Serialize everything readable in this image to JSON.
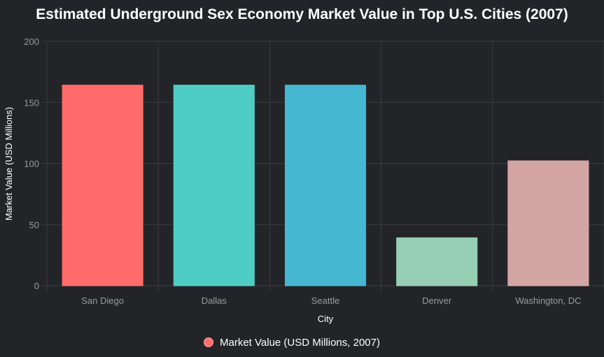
{
  "chart_data": {
    "type": "bar",
    "title": "Estimated Underground Sex Economy Market Value in Top U.S. Cities (2007)",
    "xlabel": "City",
    "ylabel": "Market Value (USD Millions)",
    "categories": [
      "San Diego",
      "Dallas",
      "Seattle",
      "Denver",
      "Washington, DC"
    ],
    "series": [
      {
        "name": "Market Value (USD Millions, 2007)",
        "values": [
          164,
          164,
          164,
          39,
          102
        ]
      }
    ],
    "ylim": [
      0,
      200
    ],
    "yticks": [
      0,
      50,
      100,
      150,
      200
    ],
    "grid": true,
    "legend_position": "bottom",
    "bar_colors": [
      "#FF6B6B",
      "#4ECDC4",
      "#45B7D1",
      "#96CEB4",
      "#D4A5A5"
    ],
    "legend_color": "#FF6B6B",
    "colors": {
      "background": "#232427",
      "grid": "#3a3b3f",
      "tick_text": "#9a9a9a",
      "label_text": "#ffffff"
    }
  }
}
